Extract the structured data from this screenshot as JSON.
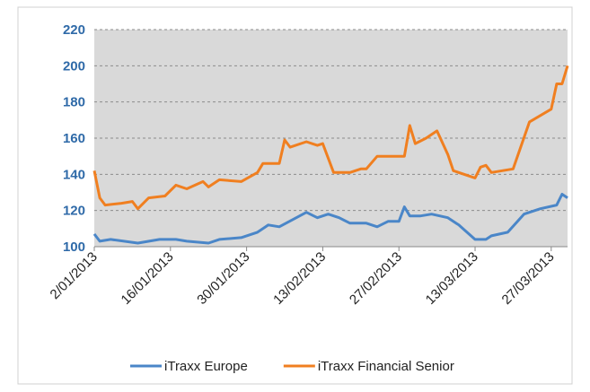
{
  "chart_data": {
    "type": "line",
    "xlim": [
      "2013-01-02",
      "2013-03-30"
    ],
    "xticks": [
      {
        "value": "2013-01-02",
        "label": "2/01/2013"
      },
      {
        "value": "2013-01-16",
        "label": "16/01/2013"
      },
      {
        "value": "2013-01-30",
        "label": "30/01/2013"
      },
      {
        "value": "2013-02-13",
        "label": "13/02/2013"
      },
      {
        "value": "2013-02-27",
        "label": "27/02/2013"
      },
      {
        "value": "2013-03-13",
        "label": "13/03/2013"
      },
      {
        "value": "2013-03-27",
        "label": "27/03/2013"
      }
    ],
    "ylim": [
      100,
      220
    ],
    "yticks": [
      100,
      120,
      140,
      160,
      180,
      200,
      220
    ],
    "grid": true,
    "legend": "bottom",
    "series": [
      {
        "name": "iTraxx Europe",
        "color": "#4a86c8",
        "x": [
          "2013-01-02",
          "2013-01-03",
          "2013-01-05",
          "2013-01-10",
          "2013-01-14",
          "2013-01-17",
          "2013-01-19",
          "2013-01-23",
          "2013-01-25",
          "2013-01-29",
          "2013-02-01",
          "2013-02-03",
          "2013-02-05",
          "2013-02-10",
          "2013-02-12",
          "2013-02-14",
          "2013-02-16",
          "2013-02-18",
          "2013-02-21",
          "2013-02-23",
          "2013-02-25",
          "2013-02-27",
          "2013-02-28",
          "2013-03-01",
          "2013-03-03",
          "2013-03-05",
          "2013-03-08",
          "2013-03-10",
          "2013-03-13",
          "2013-03-15",
          "2013-03-16",
          "2013-03-19",
          "2013-03-22",
          "2013-03-25",
          "2013-03-28",
          "2013-03-29",
          "2013-03-30"
        ],
        "values": [
          107,
          103,
          104,
          102,
          104,
          104,
          103,
          102,
          104,
          105,
          108,
          112,
          111,
          119,
          116,
          118,
          116,
          113,
          113,
          111,
          114,
          114,
          122,
          117,
          117,
          118,
          116,
          112,
          104,
          104,
          106,
          108,
          118,
          121,
          123,
          129,
          127
        ]
      },
      {
        "name": "iTraxx Financial Senior",
        "color": "#f07f20",
        "x": [
          "2013-01-02",
          "2013-01-03",
          "2013-01-04",
          "2013-01-07",
          "2013-01-09",
          "2013-01-10",
          "2013-01-12",
          "2013-01-15",
          "2013-01-17",
          "2013-01-19",
          "2013-01-22",
          "2013-01-23",
          "2013-01-25",
          "2013-01-29",
          "2013-02-01",
          "2013-02-02",
          "2013-02-05",
          "2013-02-06",
          "2013-02-07",
          "2013-02-10",
          "2013-02-12",
          "2013-02-13",
          "2013-02-15",
          "2013-02-18",
          "2013-02-20",
          "2013-02-21",
          "2013-02-23",
          "2013-02-27",
          "2013-02-28",
          "2013-03-01",
          "2013-03-02",
          "2013-03-04",
          "2013-03-06",
          "2013-03-08",
          "2013-03-09",
          "2013-03-13",
          "2013-03-14",
          "2013-03-15",
          "2013-03-16",
          "2013-03-20",
          "2013-03-23",
          "2013-03-27",
          "2013-03-28",
          "2013-03-29",
          "2013-03-30"
        ],
        "values": [
          142,
          127,
          123,
          124,
          125,
          121,
          127,
          128,
          134,
          132,
          136,
          133,
          137,
          136,
          141,
          146,
          146,
          159,
          155,
          158,
          156,
          157,
          141,
          141,
          143,
          143,
          150,
          150,
          150,
          167,
          157,
          160,
          164,
          151,
          142,
          138,
          144,
          145,
          141,
          143,
          169,
          176,
          190,
          190,
          200
        ]
      }
    ]
  }
}
